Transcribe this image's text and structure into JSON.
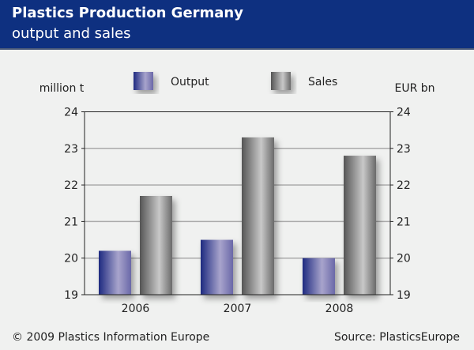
{
  "header": {
    "title": "Plastics Production Germany",
    "subtitle": "output and sales"
  },
  "footer": {
    "copyright": "© 2009 Plastics Information Europe",
    "source": "Source: PlasticsEurope"
  },
  "colors": {
    "header": "#0e3080",
    "output": "#6f6fb0",
    "sales": "#9a9a9a"
  },
  "chart_data": {
    "type": "bar",
    "categories": [
      "2006",
      "2007",
      "2008"
    ],
    "series": [
      {
        "name": "Output",
        "values": [
          20.2,
          20.5,
          20.0
        ]
      },
      {
        "name": "Sales",
        "values": [
          21.7,
          23.3,
          22.8
        ]
      }
    ],
    "ylabel_left": "million t",
    "ylabel_right": "EUR bn",
    "ylim": [
      19,
      24
    ],
    "yticks": [
      "19",
      "20",
      "21",
      "22",
      "23",
      "24"
    ],
    "grid": true,
    "legend": "top-center"
  }
}
